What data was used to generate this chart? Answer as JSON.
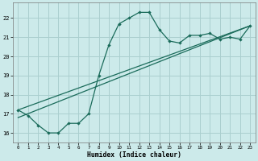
{
  "xlabel": "Humidex (Indice chaleur)",
  "bg_color": "#cceaea",
  "grid_color": "#aacfcf",
  "line_color": "#1a6b5a",
  "xlim": [
    -0.5,
    23.5
  ],
  "ylim": [
    15.5,
    22.8
  ],
  "yticks": [
    16,
    17,
    18,
    19,
    20,
    21,
    22
  ],
  "xticks": [
    0,
    1,
    2,
    3,
    4,
    5,
    6,
    7,
    8,
    9,
    10,
    11,
    12,
    13,
    14,
    15,
    16,
    17,
    18,
    19,
    20,
    21,
    22,
    23
  ],
  "series1_x": [
    0,
    1,
    2,
    3,
    4,
    5,
    6,
    7,
    8,
    9,
    10,
    11,
    12,
    13,
    14,
    15,
    16,
    17,
    18,
    19,
    20,
    21,
    22,
    23
  ],
  "series1_y": [
    17.2,
    16.9,
    16.4,
    16.0,
    16.0,
    16.5,
    16.5,
    17.0,
    19.0,
    20.6,
    21.7,
    22.0,
    22.3,
    22.3,
    21.4,
    20.8,
    20.7,
    21.1,
    21.1,
    21.2,
    20.9,
    21.0,
    20.9,
    21.6
  ],
  "series2_x": [
    0,
    23
  ],
  "series2_y": [
    17.2,
    21.6
  ],
  "series3_x": [
    0,
    23
  ],
  "series3_y": [
    16.8,
    21.6
  ]
}
